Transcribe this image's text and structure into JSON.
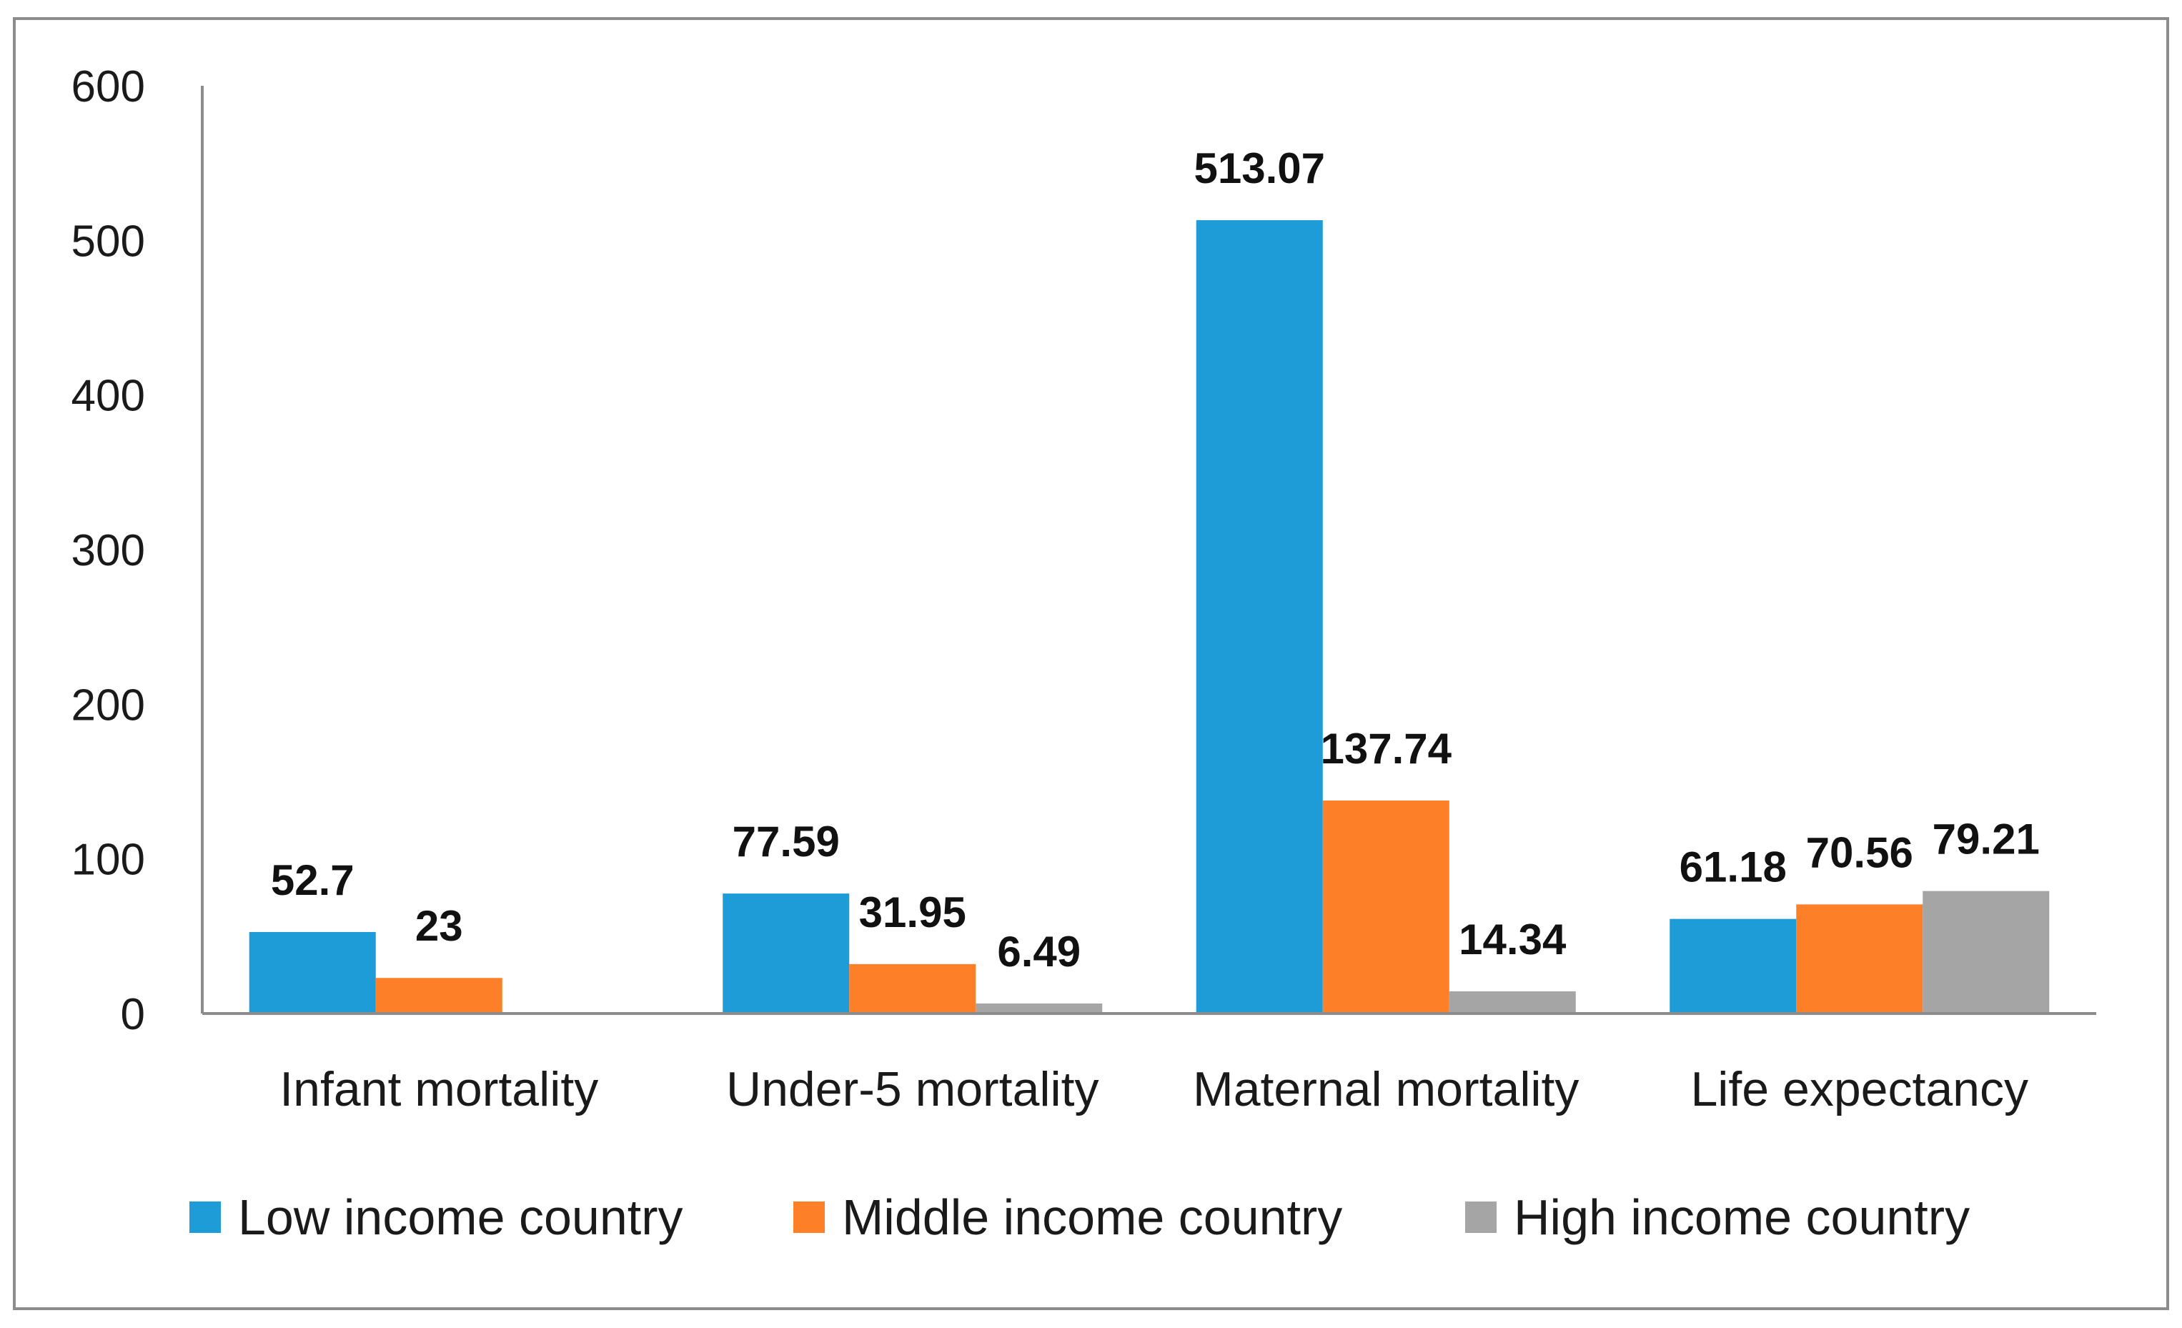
{
  "chart_data": {
    "type": "bar",
    "title": "",
    "xlabel": "",
    "ylabel": "",
    "ylim": [
      0,
      600
    ],
    "yticks": [
      0,
      100,
      200,
      300,
      400,
      500,
      600
    ],
    "grid": false,
    "legend_position": "bottom",
    "categories": [
      "Infant mortality",
      "Under-5 mortality",
      "Maternal mortality",
      "Life expectancy"
    ],
    "series": [
      {
        "name": "Low income country",
        "color": "#1e9cd7",
        "values": [
          52.7,
          77.59,
          513.07,
          61.18
        ],
        "labels": [
          "52.7",
          "77.59",
          "513.07",
          "61.18"
        ]
      },
      {
        "name": "Middle income country",
        "color": "#fd7f27",
        "values": [
          23,
          31.95,
          137.74,
          70.56
        ],
        "labels": [
          "23",
          "31.95",
          "137.74",
          "70.56"
        ]
      },
      {
        "name": "High income country",
        "color": "#a5a5a5",
        "values": [
          null,
          6.49,
          14.34,
          79.21
        ],
        "labels": [
          null,
          "6.49",
          "14.34",
          "79.21"
        ]
      }
    ]
  }
}
